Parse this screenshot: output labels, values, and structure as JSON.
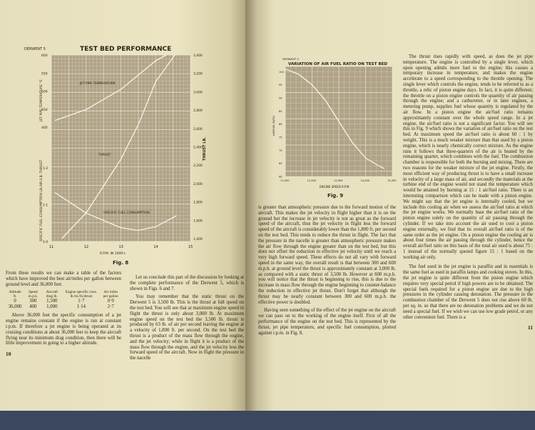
{
  "left_page": {
    "page_number": "10",
    "fig8": {
      "caption": "Fig. 8"
    },
    "col1": {
      "p1": "From these results we can make a table of the factors which have improved the best air/miles per gallon between ground level and 36,000 feet.",
      "table": {
        "headers": [
          "Altitude ft.",
          "Speed m.p.h.",
          "Aircraft drag lb.",
          "Engine specific cons. lb./hr./lb.thrust",
          "Air miles per gallon"
        ],
        "rows": [
          [
            "0",
            "300",
            "1,500",
            "1·7",
            "0·9"
          ],
          [
            "36,000",
            "400",
            "1,000",
            "1·14",
            "2·7"
          ]
        ]
      },
      "p2": "Above 36,000 feet the specific consumption of a jet engine remains constant if the engine is run at constant r.p.m. If therefore a jet engine is being operated at its cruising conditions at about 36,000 feet to keep the aircraft flying near its minimum drag condition, then there will be little improvement in going to a higher altitude."
    },
    "col2": {
      "p1": "Let us conclude this part of the discussion by looking at the complete performance of the Derwent 5, which is shown in Figs. 6 and 7.",
      "p2": "You may remember that the static thrust on the Derwent 5 is 3,500 lb. This is the thrust at full speed on the test bed. You will see that at maximum engine speed in flight the thrust is only about 3,000 lb. At maximum engine speed on the test bed the 3,500 lb. thrust is produced by 63 lb. of air per second leaving the engine at a velocity of 1,800 ft. per second. On the test bed the thrust is a product of the mass flow through the engine, and the jet velocity; while in flight it is a product of the mass flow through the engine, and the jet velocity less the forward speed of the aircraft. Now in flight the pressure in the nacelle"
    }
  },
  "right_page": {
    "page_number": "11",
    "fig9": {
      "caption": "Fig. 9"
    },
    "col1": {
      "p1": "is greater than atmospheric pressure due to the forward motion of the aircraft. This makes the jet velocity in flight higher than it is on the ground but the increase in jet velocity is not as great as the forward speed of the aircraft, thus the jet velocity in flight less the forward speed of the aircraft is considerably lower than the 1,800 ft. per second on the test bed. This tends to reduce the thrust in flight. The fact that the pressure in the nacelle is greater than atmospheric pressure makes the air flow through the engine greater than on the test bed, but this does not offset the reduction in effective jet velocity until we reach a very high forward speed. These effects do not all vary with forward speed in the same way, the overall result is that between 300 and 600 m.p.h. at ground level the thrust is approximately constant at 3,000 lb. as compared with a static thrust of 3,500 lb. However at 600 m.p.h. you will notice that the thrust is beginning to rise, this is due to the increase in mass flow through the engine beginning to counter-balance the reduction in effective jet thrust. Don't forget that although the thrust may be nearly constant between 300 and 600 m.p.h. the effective power is doubled.",
      "p2": "Having seen something of the effect of the jet engine on the aircraft we can pass on to the working of the engine itself. First of all the performance of the engine on the test bed. This is represented by the thrust, jet pipe temperature, and specific fuel consumption, plotted against r.p.m. in Fig. 8."
    },
    "col2": {
      "p1": "The thrust rises rapidly with speed, as does the jet pipe temperature. The engine is controlled by a single lever, which upon opening admits more fuel to the engine; this causes a temporary increase in temperature, and makes the engine accelerate to a speed corresponding to the throttle opening. The single lever which controls the engine, tends to be referred to as a throttle, a relic of piston engine days. In fact, it is quite different; the throttle on a piston engine controls the quantity of air passing through the engine; and a carburetter, or in later engines, a metering pump, supplies fuel whose quantity is regulated by the air flow. In a piston engine the air/fuel ratio remains approximately constant over the whole speed range. In a jet engine, the air/fuel ratio is not a significant factor. You will see this in Fig. 9 which shows the variation of air/fuel ratio on the test bed. At maximum speed the air/fuel ratio is about 60 : 1 by weight. This is a much weaker mixture than that used by a piston engine, which is nearly chemically correct mixture. As the engine runs it follows that three-quarters of the air is heated by the remaining quarter, which combines with the fuel. The combustion chamber is responsible for both the burning and mixing. There are two reasons for the weaker mixture of the jet engine. Firstly, the most efficient way of producing thrust is to have a small increase in velocity of a large mass of air, and secondly the materials at the turbine end of the engine would not stand the temperature which would be attained by burning at 15 : 1 air/fuel ratio. There is an interesting comparison which can be made with a piston engine. We might say that the jet engine is internally cooled, but we include this cooling air when we assess the air/fuel ratio at which the jet engine works. We normally base the air/fuel ratio of the piston engine solely on the quantity of air passing through the cylinder. If we take into account the air used to cool a piston engine externally, we find that its overall air/fuel ratio is of the same order as the jet engine. On a piston engine the cooling air is about four times the air passing through the cylinder, hence the overall air/fuel ratio on this basis of the total air used is about 75 : 1 instead of the normally quoted figure 15 : 1 based on the working air only.",
      "p2": "The fuel used in the jet engine is paraffin and in essentials is the same fuel as used in paraffin lamps and cooking stoves. In this, the jet engine is quite different from the piston engine which requires very special petrol if high powers are to be obtained. The special fuels required for a piston engine are due to the high pressures in the cylinder causing detonation. The pressure in the combustion chamber of the Derwent 5 does not rise above 60 lb. per sq. in. so that there are no detonation problems and we do not need a special fuel. If we wish we can use low grade petrol, or any other convenient fuel. There is a"
    }
  },
  "colors": {
    "paper": "#ebe5c4",
    "plot_bg": "#b0a386",
    "grid": "#f2efe4",
    "curve": "#f7f4ea",
    "backdrop": "#3b475f"
  },
  "chart_data": [
    {
      "type": "line",
      "corner_label": "DERWENT 5",
      "title": "TEST BED PERFORMANCE",
      "xlabel": "R.P.M. IN 1000's",
      "ylabel_left_upper": "JET PIPE TEMPERATURE °C",
      "ylabel_left_lower": "SPECIFIC FUEL CONSUMPTION LB./HR./LB. THRUST",
      "ylabel_right": "THRUST LB.",
      "xlim": [
        11,
        15
      ],
      "x_ticks": [
        "11",
        "12",
        "13",
        "14",
        "15"
      ],
      "y_left_upper_ticks": [
        "600",
        "550",
        "500",
        "450",
        "400"
      ],
      "y_left_lower_ticks": [
        "1·2",
        "1·1",
        "1·0"
      ],
      "y_right_ticks": [
        "3,400",
        "3,200",
        "3,000",
        "2,800",
        "2,600",
        "2,400",
        "2,200",
        "2,000",
        "1,800",
        "1,600",
        "1,400"
      ],
      "grid": true,
      "series": [
        {
          "name": "JET PIPE TEMPERATURE",
          "axis": "left_upper",
          "x": [
            11.1,
            12,
            13,
            14,
            14.3
          ],
          "y": [
            419,
            449,
            505,
            584,
            600
          ]
        },
        {
          "name": "THRUST",
          "axis": "right",
          "x": [
            11.3,
            12,
            13,
            13.5,
            14,
            14.55
          ],
          "y": [
            1400,
            1680,
            2265,
            2642,
            3110,
            3400
          ]
        },
        {
          "name": "SPECIFIC FUEL CONSUMPTION",
          "axis": "left_lower",
          "x": [
            11.1,
            12,
            13,
            13.5,
            14,
            14.6
          ],
          "y": [
            1.133,
            1.077,
            1.037,
            1.03,
            1.04,
            1.07
          ]
        }
      ]
    },
    {
      "type": "line",
      "corner_label": "DERWENT 5",
      "title": "VARIATION OF AIR FUEL RATIO ON TEST BED",
      "xlabel": "ENGINE SPEED R.P.M.",
      "ylabel": "AIR/FUEL RATIO",
      "xlim": [
        11000,
        15000
      ],
      "ylim": [
        60,
        102
      ],
      "x_ticks": [
        "11,000",
        "12,000",
        "13,000",
        "14,000",
        "15,000"
      ],
      "y_ticks": [
        "100",
        "95",
        "90",
        "85",
        "80",
        "75",
        "70",
        "65",
        "60"
      ],
      "grid": true,
      "series": [
        {
          "x": [
            11000,
            11500,
            12000,
            12500,
            13000,
            13500,
            14000,
            14500,
            14700
          ],
          "y": [
            101,
            99,
            95,
            89,
            81,
            73,
            67,
            64,
            63
          ]
        }
      ]
    }
  ]
}
